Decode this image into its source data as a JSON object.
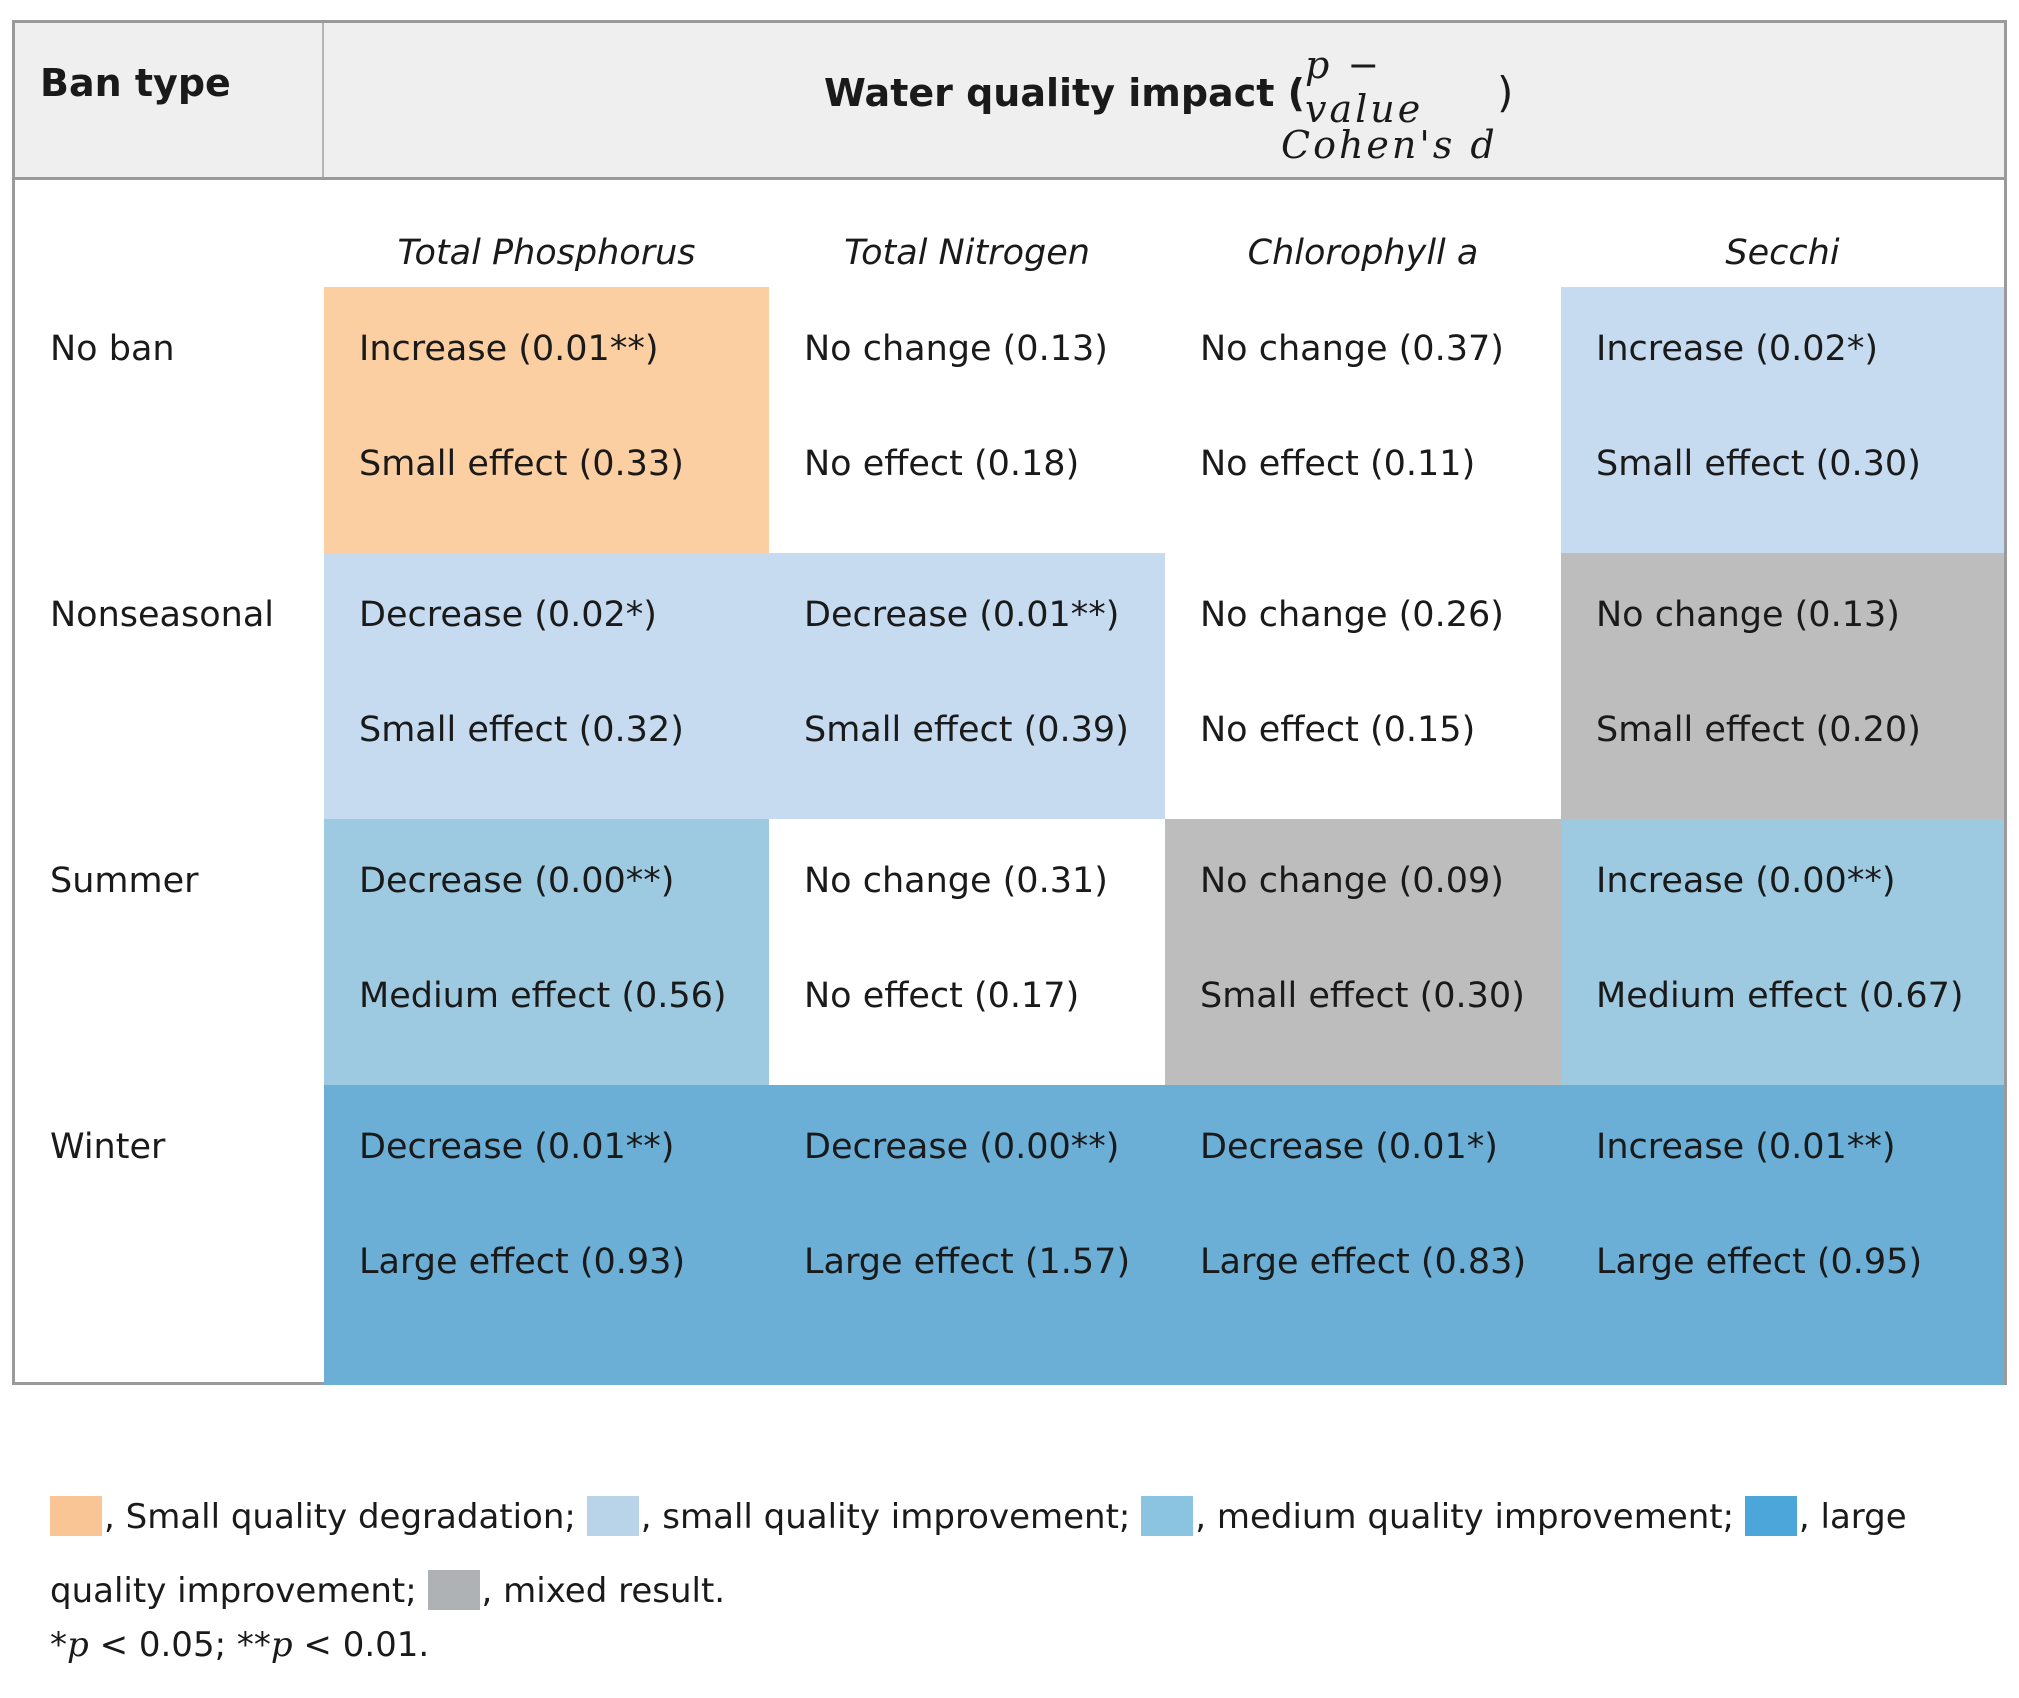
{
  "header": {
    "ban_type": "Ban type",
    "impact_title": "Water quality impact (",
    "fraction_numerator": "p − value",
    "fraction_denominator": "Cohen's d",
    "close_paren": ")"
  },
  "columns": [
    "Total Phosphorus",
    "Total Nitrogen",
    "Chlorophyll a",
    "Secchi"
  ],
  "rows": [
    {
      "label": "No ban",
      "cells": [
        {
          "line1": "Increase (0.01**)",
          "line2": "Small effect (0.33)",
          "category": "small_degradation"
        },
        {
          "line1": "No change (0.13)",
          "line2": "No effect (0.18)",
          "category": "none"
        },
        {
          "line1": "No change (0.37)",
          "line2": "No effect (0.11)",
          "category": "none"
        },
        {
          "line1": "Increase (0.02*)",
          "line2": "Small effect (0.30)",
          "category": "small_improvement"
        }
      ]
    },
    {
      "label": "Nonseasonal",
      "cells": [
        {
          "line1": "Decrease (0.02*)",
          "line2": "Small effect (0.32)",
          "category": "small_improvement"
        },
        {
          "line1": "Decrease (0.01**)",
          "line2": "Small effect (0.39)",
          "category": "small_improvement"
        },
        {
          "line1": "No change (0.26)",
          "line2": "No effect (0.15)",
          "category": "none"
        },
        {
          "line1": "No change (0.13)",
          "line2": "Small effect (0.20)",
          "category": "mixed"
        }
      ]
    },
    {
      "label": "Summer",
      "cells": [
        {
          "line1": "Decrease (0.00**)",
          "line2": "Medium effect (0.56)",
          "category": "medium_improvement"
        },
        {
          "line1": "No change (0.31)",
          "line2": "No effect (0.17)",
          "category": "none"
        },
        {
          "line1": "No change (0.09)",
          "line2": "Small effect (0.30)",
          "category": "mixed"
        },
        {
          "line1": "Increase (0.00**)",
          "line2": "Medium effect (0.67)",
          "category": "medium_improvement"
        }
      ]
    },
    {
      "label": "Winter",
      "cells": [
        {
          "line1": "Decrease (0.01**)",
          "line2": "Large effect (0.93)",
          "category": "large_improvement"
        },
        {
          "line1": "Decrease (0.00**)",
          "line2": "Large effect (1.57)",
          "category": "large_improvement"
        },
        {
          "line1": "Decrease (0.01*)",
          "line2": "Large effect (0.83)",
          "category": "large_improvement"
        },
        {
          "line1": "Increase (0.01**)",
          "line2": "Large effect (0.95)",
          "category": "large_improvement"
        }
      ]
    }
  ],
  "colors": {
    "small_degradation": "#fbcfa1",
    "small_improvement": "#c6dbef",
    "medium_improvement": "#9ecae1",
    "large_improvement": "#6baed6",
    "mixed": "#bdbdbd",
    "none": "#ffffff",
    "legend_small_degradation": "#f9c595",
    "legend_small_improvement": "#b9d3e8",
    "legend_medium_improvement": "#8bc4e0",
    "legend_large_improvement": "#4da6d9",
    "legend_mixed": "#aeb2b5"
  },
  "legend": {
    "small_degradation": ", Small quality degradation; ",
    "small_improvement": ", small quality improvement; ",
    "medium_improvement": ", medium quality improvement; ",
    "large_improvement": ", large quality improvement; ",
    "mixed": ", mixed result."
  },
  "footnote": {
    "star1": "*",
    "p1": "p",
    "text1": " < 0.05; **",
    "p2": "p",
    "text2": " < 0.01."
  }
}
